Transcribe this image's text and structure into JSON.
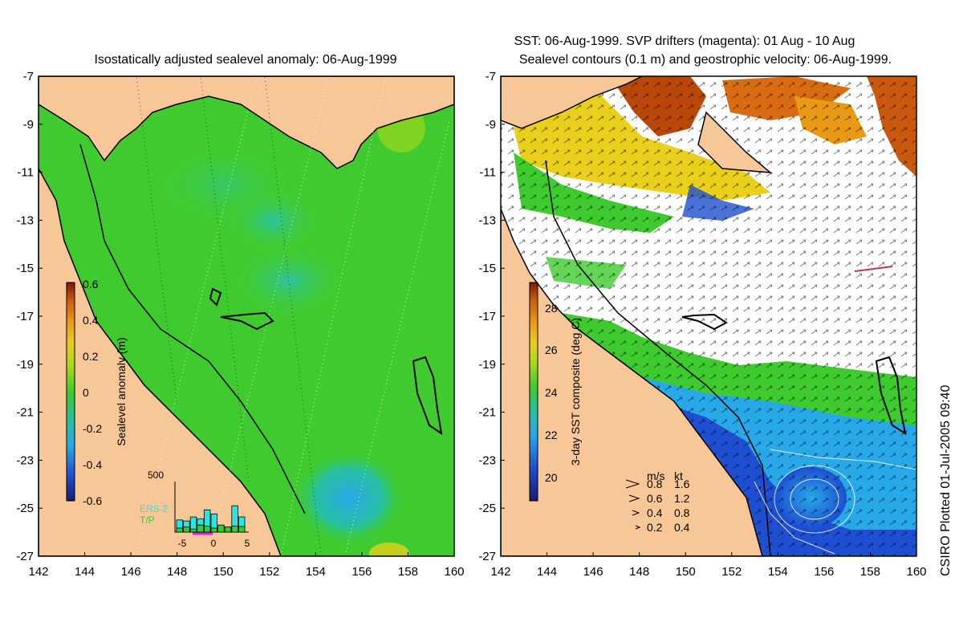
{
  "left_map": {
    "title": "Isostatically adjusted sealevel anomaly: 06-Aug-1999",
    "colorbar": {
      "label": "Sealevel anomaly (m)",
      "ticks": [
        "0.6",
        "0.4",
        "0.2",
        "0",
        "-0.2",
        "-0.4",
        "-0.6"
      ],
      "range": [
        -0.6,
        0.6
      ]
    },
    "histogram": {
      "ymax_label": "500",
      "xticks": [
        "-5",
        "0",
        "5"
      ],
      "legend": [
        {
          "label": "ERS-2",
          "color": "#27e6e6"
        },
        {
          "label": "T/P",
          "color": "#33cc33"
        }
      ],
      "ers2_counts": [
        120,
        110,
        150,
        130,
        220,
        180,
        60,
        50,
        260,
        150
      ],
      "tp_counts": [
        40,
        50,
        30,
        70,
        60,
        40,
        70,
        50,
        60,
        55
      ]
    }
  },
  "right_map": {
    "title_line1": "SST: 06-Aug-1999. SVP drifters (magenta): 01 Aug - 10 Aug",
    "title_line2": "Sealevel contours (0.1 m) and geostrophic velocity: 06-Aug-1999.",
    "colorbar": {
      "label": "3-day SST composite (deg C)",
      "ticks": [
        "28",
        "26",
        "24",
        "22",
        "20"
      ],
      "range": [
        19,
        29.5
      ]
    },
    "speed_legend": {
      "header_ms": "m/s",
      "header_kt": "kt",
      "rows": [
        {
          "ms": "0.8",
          "kt": "1.6"
        },
        {
          "ms": "0.6",
          "kt": "1.2"
        },
        {
          "ms": "0.4",
          "kt": "0.8"
        },
        {
          "ms": "0.2",
          "kt": "0.4"
        }
      ]
    }
  },
  "axes": {
    "lat_ticks": [
      "-7",
      "-9",
      "-11",
      "-13",
      "-15",
      "-17",
      "-19",
      "-21",
      "-23",
      "-25",
      "-27"
    ],
    "lon_ticks": [
      "142",
      "144",
      "146",
      "148",
      "150",
      "152",
      "154",
      "156",
      "158",
      "160"
    ],
    "lat_range": [
      -27,
      -7
    ],
    "lon_range": [
      142,
      160
    ]
  },
  "credit": "CSIRO Plotted 01-Jul-2005 09:40",
  "colors": {
    "land": "#f8c797",
    "ocean_green": "#3fcb2f",
    "anomaly_low": "#27b88a",
    "sst_cold": "#1f3fa8",
    "sst_warm": "#e8d01c",
    "sst_hot": "#b8470a"
  }
}
